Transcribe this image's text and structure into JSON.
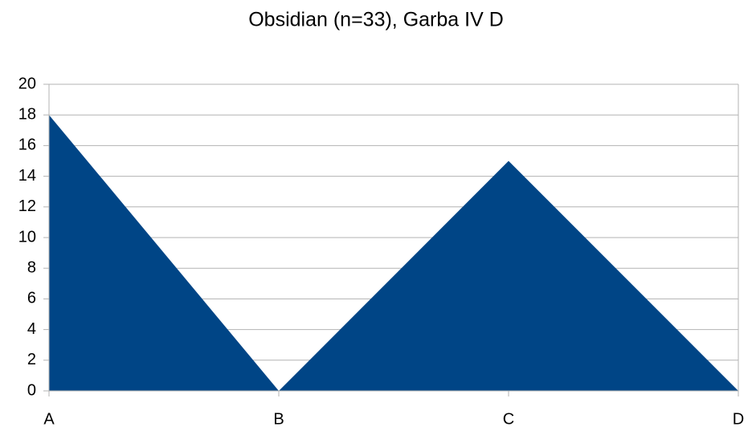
{
  "chart_data": {
    "type": "area",
    "title": "Obsidian (n=33), Garba IV D",
    "categories": [
      "A",
      "B",
      "C",
      "D"
    ],
    "values": [
      18,
      0,
      15,
      0
    ],
    "color": "#004586",
    "ylim": [
      0,
      20
    ],
    "yticks": [
      0,
      2,
      4,
      6,
      8,
      10,
      12,
      14,
      16,
      18,
      20
    ],
    "grid": true
  }
}
